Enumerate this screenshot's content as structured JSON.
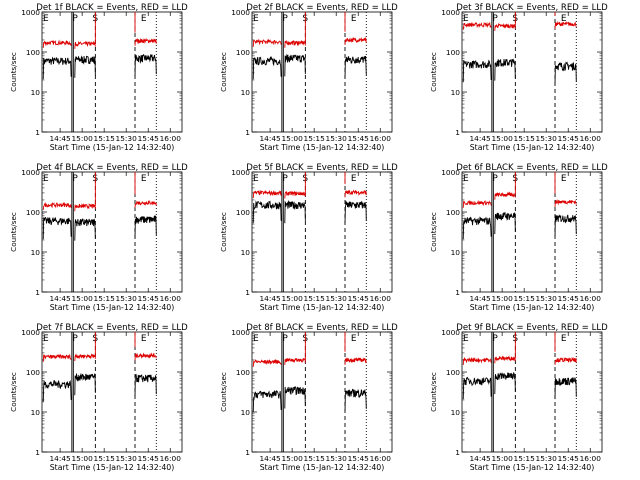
{
  "figure": {
    "xlabel": "Start Time (15-Jan-12 14:32:40)",
    "ylabel": "Counts/sec",
    "x_tick_labels": [
      "14:45",
      "15:00",
      "15:15",
      "15:30",
      "15:45",
      "16:00"
    ],
    "y_tick_labels": [
      "1",
      "10",
      "100",
      "1000"
    ],
    "marker_labels": [
      "E",
      "P",
      "S",
      "E"
    ]
  },
  "colors": {
    "events": "#000000",
    "lld": "#dd0000"
  },
  "chart_data": [
    {
      "type": "line",
      "title": "Det 1f BLACK = Events, RED = LLD",
      "ylim": [
        1,
        1000
      ],
      "y_scale": "log",
      "x": [
        "14:32:40",
        "16:08:00"
      ],
      "series": [
        {
          "name": "BLACK = Events",
          "levels": {
            "seg1": 60,
            "seg2": 65,
            "seg3": 70
          }
        },
        {
          "name": "RED = LLD",
          "levels": {
            "seg1": 170,
            "seg2": 160,
            "seg3": 190
          }
        }
      ]
    },
    {
      "type": "line",
      "title": "Det 2f BLACK = Events, RED = LLD",
      "ylim": [
        1,
        1000
      ],
      "y_scale": "log",
      "x": [
        "14:32:40",
        "16:08:00"
      ],
      "series": [
        {
          "name": "BLACK = Events",
          "levels": {
            "seg1": 60,
            "seg2": 70,
            "seg3": 65
          }
        },
        {
          "name": "RED = LLD",
          "levels": {
            "seg1": 180,
            "seg2": 170,
            "seg3": 200
          }
        }
      ]
    },
    {
      "type": "line",
      "title": "Det 3f BLACK = Events, RED = LLD",
      "ylim": [
        1,
        1000
      ],
      "y_scale": "log",
      "x": [
        "14:32:40",
        "16:08:00"
      ],
      "series": [
        {
          "name": "BLACK = Events",
          "levels": {
            "seg1": 50,
            "seg2": 55,
            "seg3": 45
          }
        },
        {
          "name": "RED = LLD",
          "levels": {
            "seg1": 480,
            "seg2": 450,
            "seg3": 500
          }
        }
      ]
    },
    {
      "type": "line",
      "title": "Det 4f BLACK = Events, RED = LLD",
      "ylim": [
        1,
        1000
      ],
      "y_scale": "log",
      "x": [
        "14:32:40",
        "16:08:00"
      ],
      "series": [
        {
          "name": "BLACK = Events",
          "levels": {
            "seg1": 60,
            "seg2": 55,
            "seg3": 65
          }
        },
        {
          "name": "RED = LLD",
          "levels": {
            "seg1": 150,
            "seg2": 140,
            "seg3": 170
          }
        }
      ]
    },
    {
      "type": "line",
      "title": "Det 5f BLACK = Events, RED = LLD",
      "ylim": [
        1,
        1000
      ],
      "y_scale": "log",
      "x": [
        "14:32:40",
        "16:08:00"
      ],
      "series": [
        {
          "name": "BLACK = Events",
          "levels": {
            "seg1": 150,
            "seg2": 150,
            "seg3": 150
          }
        },
        {
          "name": "RED = LLD",
          "levels": {
            "seg1": 300,
            "seg2": 290,
            "seg3": 310
          }
        }
      ]
    },
    {
      "type": "line",
      "title": "Det 6f BLACK = Events, RED = LLD",
      "ylim": [
        1,
        1000
      ],
      "y_scale": "log",
      "x": [
        "14:32:40",
        "16:08:00"
      ],
      "series": [
        {
          "name": "BLACK = Events",
          "levels": {
            "seg1": 60,
            "seg2": 80,
            "seg3": 70
          }
        },
        {
          "name": "RED = LLD",
          "levels": {
            "seg1": 170,
            "seg2": 270,
            "seg3": 180
          }
        }
      ]
    },
    {
      "type": "line",
      "title": "Det 7f BLACK = Events, RED = LLD",
      "ylim": [
        1,
        1000
      ],
      "y_scale": "log",
      "x": [
        "14:32:40",
        "16:08:00"
      ],
      "series": [
        {
          "name": "BLACK = Events",
          "levels": {
            "seg1": 50,
            "seg2": 75,
            "seg3": 70
          }
        },
        {
          "name": "RED = LLD",
          "levels": {
            "seg1": 240,
            "seg2": 250,
            "seg3": 260
          }
        }
      ]
    },
    {
      "type": "line",
      "title": "Det 8f BLACK = Events, RED = LLD",
      "ylim": [
        1,
        1000
      ],
      "y_scale": "log",
      "x": [
        "14:32:40",
        "16:08:00"
      ],
      "series": [
        {
          "name": "BLACK = Events",
          "levels": {
            "seg1": 28,
            "seg2": 35,
            "seg3": 30
          }
        },
        {
          "name": "RED = LLD",
          "levels": {
            "seg1": 180,
            "seg2": 200,
            "seg3": 200
          }
        }
      ]
    },
    {
      "type": "line",
      "title": "Det 9f BLACK = Events, RED = LLD",
      "ylim": [
        1,
        1000
      ],
      "y_scale": "log",
      "x": [
        "14:32:40",
        "16:08:00"
      ],
      "series": [
        {
          "name": "BLACK = Events",
          "levels": {
            "seg1": 60,
            "seg2": 80,
            "seg3": 60
          }
        },
        {
          "name": "RED = LLD",
          "levels": {
            "seg1": 200,
            "seg2": 220,
            "seg3": 200
          }
        }
      ]
    }
  ]
}
